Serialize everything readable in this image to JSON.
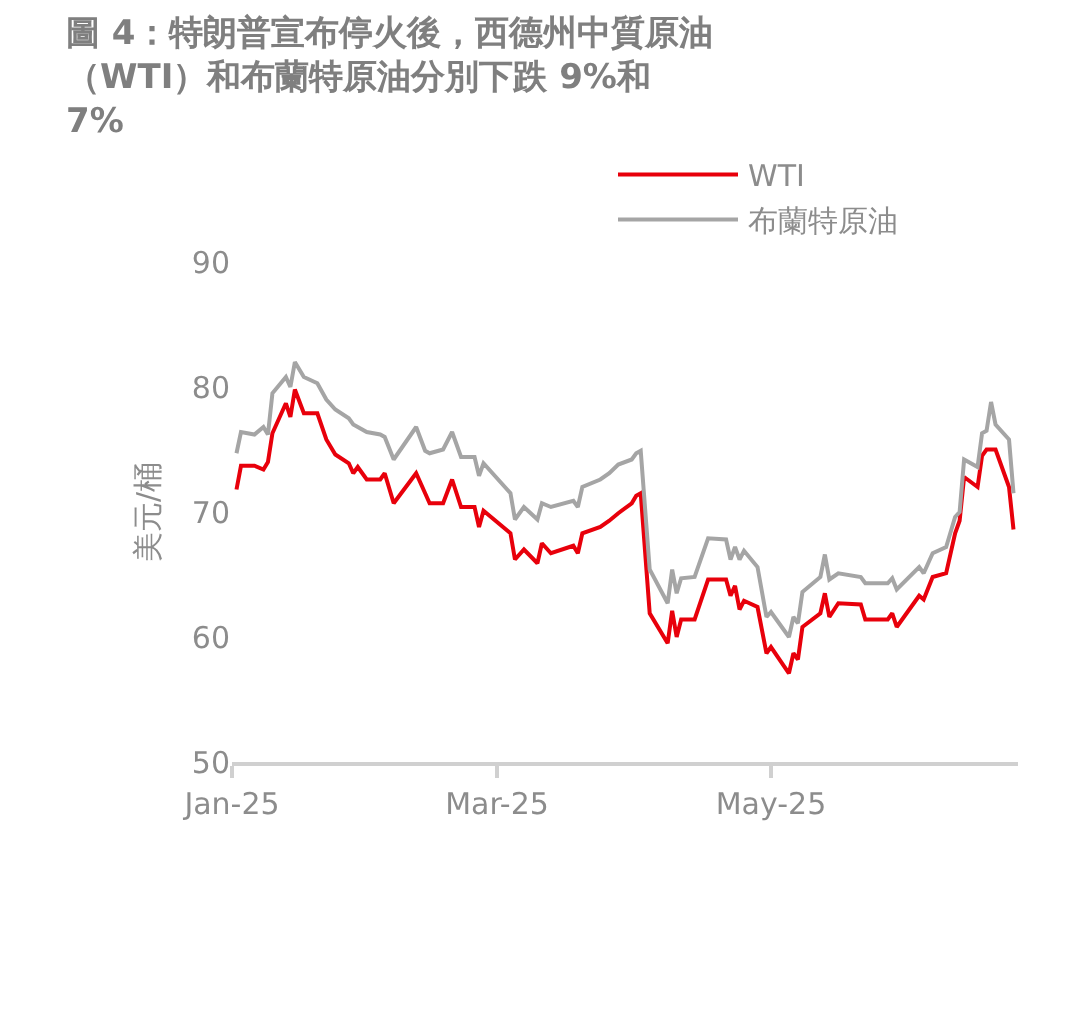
{
  "chart_data": {
    "type": "line",
    "title": "圖 4：特朗普宣布停火後，西德州中質原油（WTI）和布蘭特原油分別下跌 9%和 7%",
    "ylabel": "美元/桶",
    "x": [
      "2025-01-02",
      "2025-01-03",
      "2025-01-06",
      "2025-01-08",
      "2025-01-09",
      "2025-01-10",
      "2025-01-13",
      "2025-01-14",
      "2025-01-15",
      "2025-01-17",
      "2025-01-20",
      "2025-01-22",
      "2025-01-24",
      "2025-01-27",
      "2025-01-28",
      "2025-01-29",
      "2025-01-31",
      "2025-02-03",
      "2025-02-04",
      "2025-02-06",
      "2025-02-11",
      "2025-02-13",
      "2025-02-14",
      "2025-02-17",
      "2025-02-19",
      "2025-02-21",
      "2025-02-24",
      "2025-02-25",
      "2025-02-26",
      "2025-03-04",
      "2025-03-05",
      "2025-03-07",
      "2025-03-10",
      "2025-03-11",
      "2025-03-13",
      "2025-03-18",
      "2025-03-19",
      "2025-03-20",
      "2025-03-24",
      "2025-03-26",
      "2025-03-28",
      "2025-03-31",
      "2025-04-01",
      "2025-04-02",
      "2025-04-04",
      "2025-04-08",
      "2025-04-09",
      "2025-04-10",
      "2025-04-11",
      "2025-04-14",
      "2025-04-17",
      "2025-04-21",
      "2025-04-22",
      "2025-04-23",
      "2025-04-24",
      "2025-04-25",
      "2025-04-28",
      "2025-04-30",
      "2025-05-01",
      "2025-05-05",
      "2025-05-06",
      "2025-05-07",
      "2025-05-08",
      "2025-05-12",
      "2025-05-13",
      "2025-05-14",
      "2025-05-16",
      "2025-05-21",
      "2025-05-22",
      "2025-05-27",
      "2025-05-28",
      "2025-05-29",
      "2025-06-03",
      "2025-06-04",
      "2025-06-06",
      "2025-06-09",
      "2025-06-11",
      "2025-06-12",
      "2025-06-13",
      "2025-06-16",
      "2025-06-17",
      "2025-06-18",
      "2025-06-19",
      "2025-06-20",
      "2025-06-23",
      "2025-06-24"
    ],
    "series": [
      {
        "name": "WTI",
        "color": "#e8000b",
        "values": [
          71.8,
          73.7,
          73.7,
          73.4,
          74.0,
          76.3,
          78.7,
          77.6,
          79.8,
          77.9,
          77.9,
          75.8,
          74.6,
          73.9,
          73.1,
          73.6,
          72.6,
          72.6,
          73.1,
          70.7,
          73.1,
          71.5,
          70.7,
          70.7,
          72.6,
          70.4,
          70.4,
          68.8,
          70.1,
          68.3,
          66.2,
          67.0,
          65.9,
          67.5,
          66.7,
          67.3,
          66.7,
          68.3,
          68.8,
          69.3,
          69.9,
          70.7,
          71.3,
          71.5,
          61.9,
          59.5,
          62.1,
          60.0,
          61.4,
          61.4,
          64.6,
          64.6,
          63.3,
          64.1,
          62.2,
          62.9,
          62.4,
          58.7,
          59.2,
          57.1,
          58.7,
          58.2,
          60.8,
          61.9,
          63.5,
          61.6,
          62.7,
          62.6,
          61.4,
          61.4,
          61.9,
          60.8,
          63.3,
          63.0,
          64.8,
          65.1,
          68.3,
          69.3,
          72.8,
          72.0,
          74.5,
          75.0,
          75.0,
          75.0,
          72.0,
          68.6
        ]
      },
      {
        "name": "布蘭特原油",
        "color": "#a5a5a5",
        "values": [
          74.7,
          76.4,
          76.2,
          76.8,
          76.2,
          79.5,
          80.8,
          80.0,
          82.0,
          80.8,
          80.3,
          79.0,
          78.2,
          77.5,
          77.0,
          76.8,
          76.4,
          76.2,
          76.0,
          74.2,
          76.8,
          74.9,
          74.7,
          75.0,
          76.4,
          74.4,
          74.4,
          72.9,
          73.9,
          71.5,
          69.4,
          70.4,
          69.4,
          70.7,
          70.4,
          70.9,
          70.4,
          72.0,
          72.6,
          73.1,
          73.8,
          74.2,
          74.7,
          74.9,
          65.4,
          62.7,
          65.4,
          63.5,
          64.7,
          64.8,
          67.9,
          67.8,
          66.2,
          67.2,
          66.2,
          66.9,
          65.6,
          61.6,
          62.0,
          60.0,
          61.6,
          61.1,
          63.6,
          64.8,
          66.6,
          64.6,
          65.1,
          64.8,
          64.3,
          64.3,
          64.7,
          63.8,
          65.6,
          65.1,
          66.7,
          67.2,
          69.6,
          70.0,
          74.2,
          73.6,
          76.3,
          76.5,
          78.8,
          77.0,
          75.8,
          71.5
        ]
      }
    ],
    "xlim": [
      "2025-01-01",
      "2025-06-25"
    ],
    "xticks": [
      {
        "value": "2025-01-01",
        "label": "Jan-25"
      },
      {
        "value": "2025-03-01",
        "label": "Mar-25"
      },
      {
        "value": "2025-05-01",
        "label": "May-25"
      }
    ],
    "ylim": [
      50,
      90
    ],
    "yticks": [
      50,
      60,
      70,
      80,
      90
    ],
    "legend": "top",
    "marker": "none",
    "line_style": "solid"
  }
}
